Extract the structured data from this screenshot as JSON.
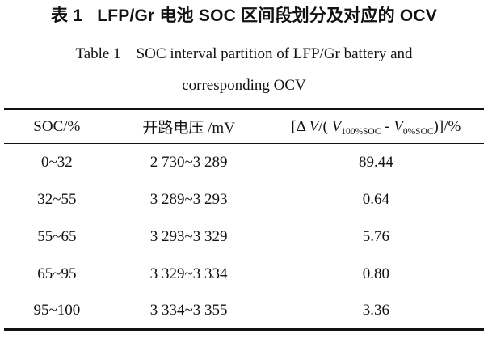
{
  "title": {
    "chinese": "表 1   LFP/Gr 电池 SOC 区间段划分及对应的 OCV",
    "english_line1": "Table 1    SOC interval partition of LFP/Gr battery and",
    "english_line2": "corresponding OCV"
  },
  "table": {
    "headers": {
      "soc": "SOC/%",
      "ocv": "开路电压 /mV",
      "formula": {
        "open": "[Δ ",
        "v1": "V",
        "mid": "/( ",
        "v2": "V",
        "sub1": "100%SOC",
        "minus": " - ",
        "v3": "V",
        "sub2": "0%SOC",
        "close": ")]/%"
      }
    },
    "rows": [
      [
        "0~32",
        "2 730~3 289",
        "89.44"
      ],
      [
        "32~55",
        "3 289~3 293",
        "0.64"
      ],
      [
        "55~65",
        "3 293~3 329",
        "5.76"
      ],
      [
        "65~95",
        "3 329~3 334",
        "0.80"
      ],
      [
        "95~100",
        "3 334~3 355",
        "3.36"
      ]
    ]
  },
  "colors": {
    "text": "#121212",
    "rule": "#121212",
    "background": "#ffffff"
  }
}
